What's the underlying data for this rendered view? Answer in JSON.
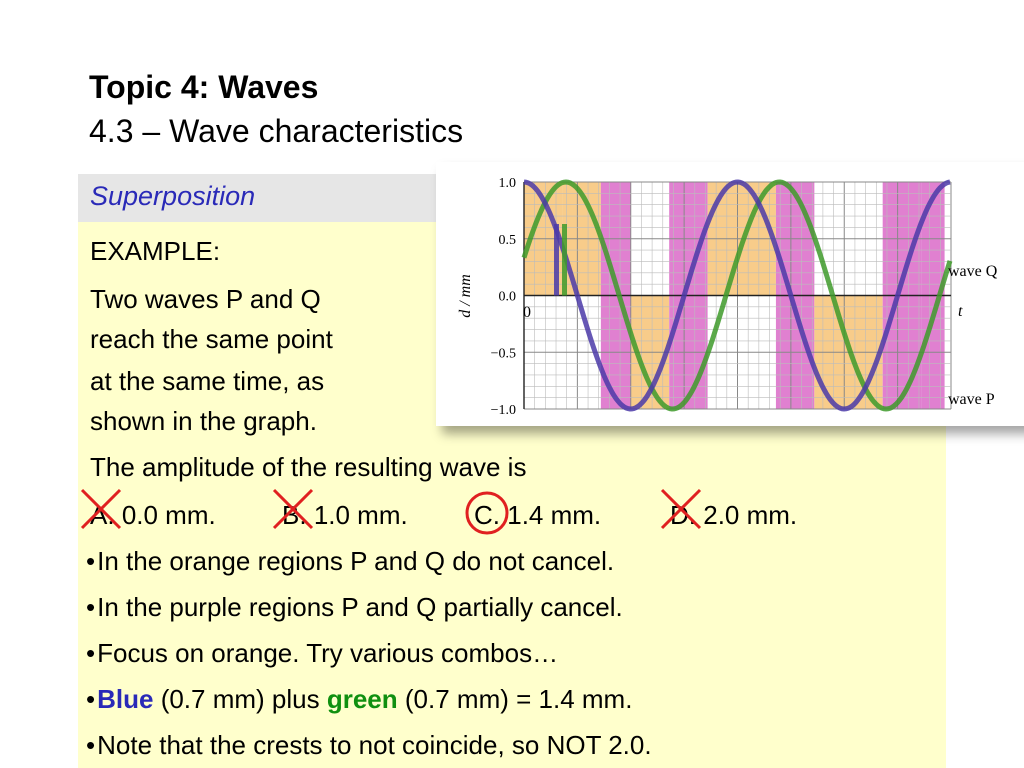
{
  "header": {
    "title": "Topic 4: Waves",
    "subtitle": "4.3 – Wave characteristics"
  },
  "section": {
    "label": "Superposition"
  },
  "example": {
    "heading": "EXAMPLE:",
    "lines": [
      "Two waves P and Q",
      "reach the same point",
      "at the same time, as",
      "shown in the graph."
    ],
    "question": "The amplitude of the resulting wave is",
    "options": [
      {
        "letter": "A.",
        "text": "0.0 mm.",
        "mark": "cross"
      },
      {
        "letter": "B.",
        "text": "1.0 mm.",
        "mark": "cross"
      },
      {
        "letter": "C.",
        "text": "1.4 mm.",
        "mark": "circle"
      },
      {
        "letter": "D.",
        "text": "2.0 mm.",
        "mark": "cross"
      }
    ]
  },
  "bullets": {
    "b1": "In the orange regions P and Q do not cancel.",
    "b2": "In the purple regions P and Q partially cancel.",
    "b3": "Focus on orange. Try various combos…",
    "b4_blue": "Blue",
    "b4_mid": "(0.7 mm) plus",
    "b4_green": "green",
    "b4_end": "(0.7 mm) = 1.4 mm.",
    "b5": "Note that the crests to not coincide, so NOT 2.0."
  },
  "graph": {
    "ylabel": "d / mm",
    "xlabel": "t",
    "origin_label": "0",
    "ytick_labels": [
      "1.0",
      "0.5",
      "0.0",
      "−0.5",
      "−1.0"
    ],
    "series_labels": {
      "q": "wave Q",
      "p": "wave P"
    },
    "colors": {
      "wave_p": "#4b3aa8",
      "wave_q": "#3e9a2a",
      "orange": "#f8cc8a",
      "pink": "#e080d0"
    }
  }
}
